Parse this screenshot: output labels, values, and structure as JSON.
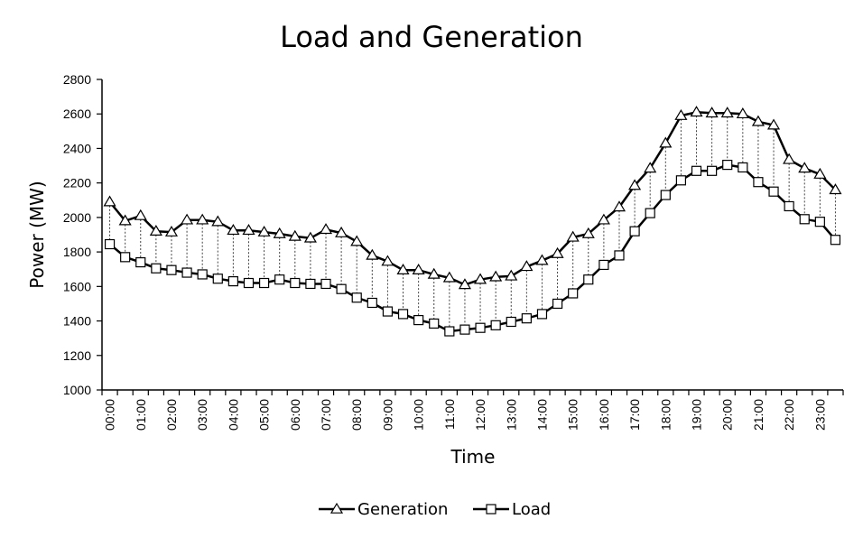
{
  "chart_data": {
    "type": "line",
    "title": "Load and Generation",
    "xlabel": "Time",
    "ylabel": "Power (MW)",
    "ylim": [
      1000,
      2800
    ],
    "yticks": [
      1000,
      1200,
      1400,
      1600,
      1800,
      2000,
      2200,
      2400,
      2600,
      2800
    ],
    "x_tick_labels": [
      "00:00",
      "01:00",
      "02:00",
      "03:00",
      "04:00",
      "05:00",
      "06:00",
      "07:00",
      "08:00",
      "09:00",
      "10:00",
      "11:00",
      "12:00",
      "13:00",
      "14:00",
      "15:00",
      "16:00",
      "17:00",
      "18:00",
      "19:00",
      "20:00",
      "21:00",
      "22:00",
      "23:00"
    ],
    "points_per_hour": 2,
    "legend_position": "bottom",
    "grid": false,
    "drop_lines": true,
    "series": [
      {
        "name": "Generation",
        "marker": "triangle",
        "values": [
          2090,
          1980,
          2010,
          1920,
          1915,
          1985,
          1985,
          1975,
          1925,
          1925,
          1915,
          1905,
          1890,
          1880,
          1930,
          1910,
          1860,
          1780,
          1745,
          1695,
          1695,
          1670,
          1650,
          1610,
          1640,
          1655,
          1660,
          1715,
          1750,
          1790,
          1885,
          1905,
          1985,
          2060,
          2185,
          2285,
          2430,
          2590,
          2610,
          2605,
          2605,
          2600,
          2555,
          2535,
          2335,
          2285,
          2250,
          2160
        ]
      },
      {
        "name": "Load",
        "marker": "square",
        "values": [
          1845,
          1770,
          1740,
          1705,
          1695,
          1680,
          1670,
          1645,
          1630,
          1620,
          1620,
          1640,
          1620,
          1615,
          1615,
          1585,
          1535,
          1505,
          1455,
          1440,
          1405,
          1385,
          1340,
          1350,
          1360,
          1375,
          1395,
          1415,
          1440,
          1500,
          1560,
          1640,
          1725,
          1780,
          1920,
          2025,
          2130,
          2215,
          2270,
          2270,
          2305,
          2290,
          2205,
          2150,
          2065,
          1990,
          1975,
          1870
        ]
      }
    ]
  }
}
